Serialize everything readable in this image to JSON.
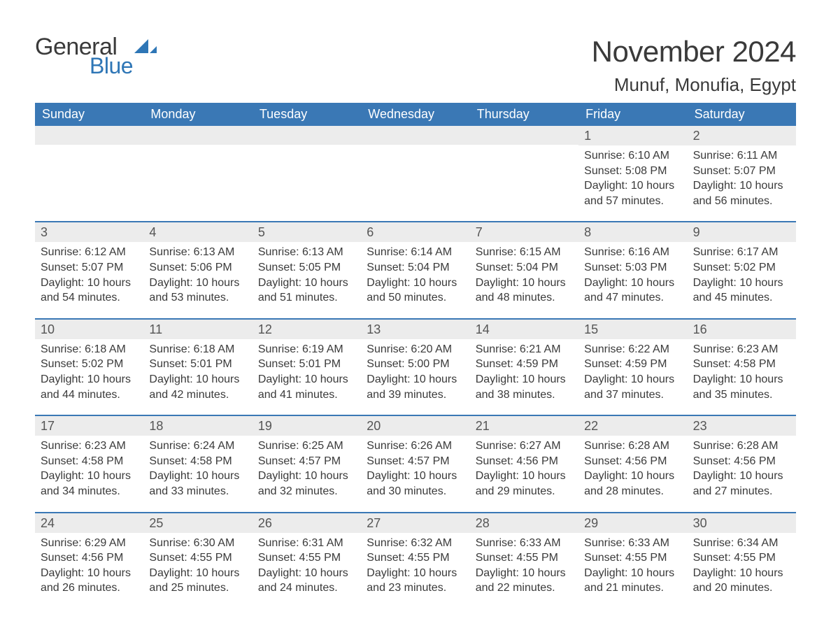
{
  "brand": {
    "part1": "General",
    "part2": "Blue",
    "color_accent": "#2e76b6",
    "color_text": "#3a3a3a"
  },
  "title": "November 2024",
  "location": "Munuf, Monufia, Egypt",
  "colors": {
    "header_bg": "#3a78b5",
    "header_text": "#ffffff",
    "daynum_bg": "#ececec",
    "row_divider": "#3a78b5",
    "body_text": "#3a3a3a",
    "background": "#ffffff"
  },
  "day_labels": [
    "Sunday",
    "Monday",
    "Tuesday",
    "Wednesday",
    "Thursday",
    "Friday",
    "Saturday"
  ],
  "weeks": [
    [
      null,
      null,
      null,
      null,
      null,
      {
        "n": "1",
        "sunrise": "6:10 AM",
        "sunset": "5:08 PM",
        "daylight": "10 hours and 57 minutes."
      },
      {
        "n": "2",
        "sunrise": "6:11 AM",
        "sunset": "5:07 PM",
        "daylight": "10 hours and 56 minutes."
      }
    ],
    [
      {
        "n": "3",
        "sunrise": "6:12 AM",
        "sunset": "5:07 PM",
        "daylight": "10 hours and 54 minutes."
      },
      {
        "n": "4",
        "sunrise": "6:13 AM",
        "sunset": "5:06 PM",
        "daylight": "10 hours and 53 minutes."
      },
      {
        "n": "5",
        "sunrise": "6:13 AM",
        "sunset": "5:05 PM",
        "daylight": "10 hours and 51 minutes."
      },
      {
        "n": "6",
        "sunrise": "6:14 AM",
        "sunset": "5:04 PM",
        "daylight": "10 hours and 50 minutes."
      },
      {
        "n": "7",
        "sunrise": "6:15 AM",
        "sunset": "5:04 PM",
        "daylight": "10 hours and 48 minutes."
      },
      {
        "n": "8",
        "sunrise": "6:16 AM",
        "sunset": "5:03 PM",
        "daylight": "10 hours and 47 minutes."
      },
      {
        "n": "9",
        "sunrise": "6:17 AM",
        "sunset": "5:02 PM",
        "daylight": "10 hours and 45 minutes."
      }
    ],
    [
      {
        "n": "10",
        "sunrise": "6:18 AM",
        "sunset": "5:02 PM",
        "daylight": "10 hours and 44 minutes."
      },
      {
        "n": "11",
        "sunrise": "6:18 AM",
        "sunset": "5:01 PM",
        "daylight": "10 hours and 42 minutes."
      },
      {
        "n": "12",
        "sunrise": "6:19 AM",
        "sunset": "5:01 PM",
        "daylight": "10 hours and 41 minutes."
      },
      {
        "n": "13",
        "sunrise": "6:20 AM",
        "sunset": "5:00 PM",
        "daylight": "10 hours and 39 minutes."
      },
      {
        "n": "14",
        "sunrise": "6:21 AM",
        "sunset": "4:59 PM",
        "daylight": "10 hours and 38 minutes."
      },
      {
        "n": "15",
        "sunrise": "6:22 AM",
        "sunset": "4:59 PM",
        "daylight": "10 hours and 37 minutes."
      },
      {
        "n": "16",
        "sunrise": "6:23 AM",
        "sunset": "4:58 PM",
        "daylight": "10 hours and 35 minutes."
      }
    ],
    [
      {
        "n": "17",
        "sunrise": "6:23 AM",
        "sunset": "4:58 PM",
        "daylight": "10 hours and 34 minutes."
      },
      {
        "n": "18",
        "sunrise": "6:24 AM",
        "sunset": "4:58 PM",
        "daylight": "10 hours and 33 minutes."
      },
      {
        "n": "19",
        "sunrise": "6:25 AM",
        "sunset": "4:57 PM",
        "daylight": "10 hours and 32 minutes."
      },
      {
        "n": "20",
        "sunrise": "6:26 AM",
        "sunset": "4:57 PM",
        "daylight": "10 hours and 30 minutes."
      },
      {
        "n": "21",
        "sunrise": "6:27 AM",
        "sunset": "4:56 PM",
        "daylight": "10 hours and 29 minutes."
      },
      {
        "n": "22",
        "sunrise": "6:28 AM",
        "sunset": "4:56 PM",
        "daylight": "10 hours and 28 minutes."
      },
      {
        "n": "23",
        "sunrise": "6:28 AM",
        "sunset": "4:56 PM",
        "daylight": "10 hours and 27 minutes."
      }
    ],
    [
      {
        "n": "24",
        "sunrise": "6:29 AM",
        "sunset": "4:56 PM",
        "daylight": "10 hours and 26 minutes."
      },
      {
        "n": "25",
        "sunrise": "6:30 AM",
        "sunset": "4:55 PM",
        "daylight": "10 hours and 25 minutes."
      },
      {
        "n": "26",
        "sunrise": "6:31 AM",
        "sunset": "4:55 PM",
        "daylight": "10 hours and 24 minutes."
      },
      {
        "n": "27",
        "sunrise": "6:32 AM",
        "sunset": "4:55 PM",
        "daylight": "10 hours and 23 minutes."
      },
      {
        "n": "28",
        "sunrise": "6:33 AM",
        "sunset": "4:55 PM",
        "daylight": "10 hours and 22 minutes."
      },
      {
        "n": "29",
        "sunrise": "6:33 AM",
        "sunset": "4:55 PM",
        "daylight": "10 hours and 21 minutes."
      },
      {
        "n": "30",
        "sunrise": "6:34 AM",
        "sunset": "4:55 PM",
        "daylight": "10 hours and 20 minutes."
      }
    ]
  ],
  "labels": {
    "sunrise": "Sunrise: ",
    "sunset": "Sunset: ",
    "daylight": "Daylight: "
  }
}
